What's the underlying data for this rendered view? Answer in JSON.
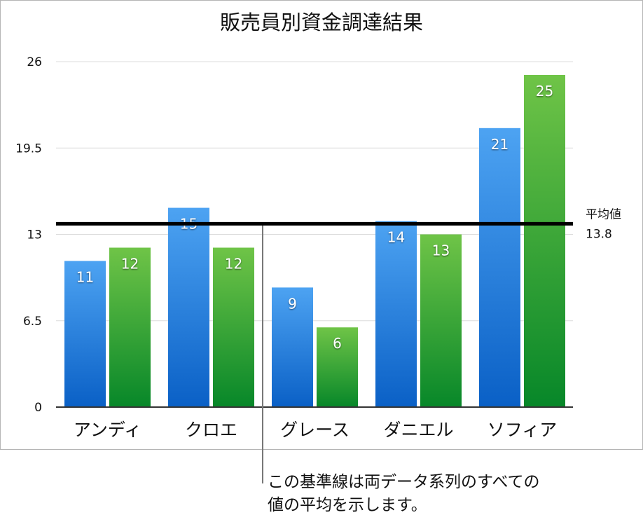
{
  "chart_data": {
    "type": "bar",
    "title": "販売員別資金調達結果",
    "categories": [
      "アンディ",
      "クロエ",
      "グレース",
      "ダニエル",
      "ソフィア"
    ],
    "series": [
      {
        "values": [
          11,
          15,
          9,
          14,
          21
        ],
        "color": "#2f86e3"
      },
      {
        "values": [
          12,
          12,
          6,
          13,
          25
        ],
        "color": "#3fa53a"
      }
    ],
    "ylim": [
      0,
      26
    ],
    "yticks": [
      "0",
      "6.5",
      "13",
      "19.5",
      "26"
    ],
    "ytick_values": [
      0,
      6.5,
      13,
      19.5,
      26
    ],
    "grid": true,
    "data_labels": true,
    "reference_line": {
      "label": "平均値",
      "value": 13.8,
      "value_label": "13.8"
    },
    "annotation": "この基準線は両データ系列のすべての\n値の平均を示します。"
  }
}
